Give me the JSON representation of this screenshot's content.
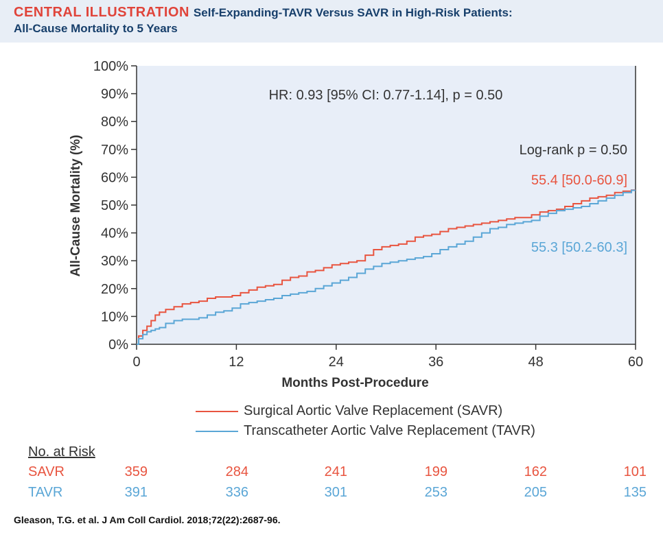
{
  "header": {
    "label": "CENTRAL ILLUSTRATION",
    "title_line1": "Self-Expanding-TAVR Versus SAVR in High-Risk Patients:",
    "title_line2": "All-Cause Mortality to 5 Years"
  },
  "colors": {
    "savr": "#e8543f",
    "tavr": "#5aa6d6",
    "plot_bg": "#e8eef8",
    "header_bg": "#e8eef6",
    "title": "#173f6b"
  },
  "chart_data": {
    "type": "line",
    "xlabel": "Months Post-Procedure",
    "ylabel": "All-Cause Mortality (%)",
    "xlim": [
      0,
      60
    ],
    "ylim": [
      0,
      100
    ],
    "x_ticks": [
      0,
      12,
      24,
      36,
      48,
      60
    ],
    "y_ticks": [
      "0%",
      "10%",
      "20%",
      "30%",
      "40%",
      "50%",
      "60%",
      "70%",
      "80%",
      "90%",
      "100%"
    ],
    "annotations": {
      "hr": "HR: 0.93 [95% CI: 0.77-1.14], p = 0.50",
      "logrank": "Log-rank p = 0.50",
      "savr_value": "55.4 [50.0-60.9]",
      "tavr_value": "55.3 [50.2-60.3]"
    },
    "series": [
      {
        "name": "Surgical Aortic Valve Replacement (SAVR)",
        "x": [
          0,
          0.5,
          1,
          1.5,
          2,
          2.5,
          3,
          4,
          5,
          6,
          7,
          8,
          9,
          10,
          11,
          12,
          13,
          14,
          15,
          16,
          17,
          18,
          19,
          20,
          21,
          22,
          23,
          24,
          25,
          26,
          27,
          28,
          29,
          30,
          31,
          32,
          33,
          34,
          35,
          36,
          37,
          38,
          39,
          40,
          41,
          42,
          43,
          44,
          45,
          46,
          47,
          48,
          49,
          50,
          51,
          52,
          53,
          54,
          55,
          56,
          57,
          58,
          59,
          60
        ],
        "values": [
          0,
          3,
          5,
          6.5,
          8.5,
          10.5,
          11.5,
          12.5,
          13.5,
          14.5,
          15,
          15.5,
          16.5,
          17,
          17,
          17.5,
          18.5,
          19.5,
          20.5,
          21,
          21.5,
          23,
          24,
          24.5,
          26,
          26.5,
          27.5,
          28.5,
          29,
          29.5,
          30,
          32,
          34,
          35,
          35.5,
          36,
          37,
          38.5,
          39,
          39.5,
          40.5,
          41.5,
          42,
          42.5,
          43,
          43.5,
          44,
          44.5,
          45,
          45.5,
          45.5,
          46.5,
          47.5,
          48,
          48.5,
          49.5,
          50.5,
          51.5,
          52.5,
          53,
          53.5,
          54.5,
          55,
          55.4
        ]
      },
      {
        "name": "Transcatheter Aortic Valve Replacement (TAVR)",
        "x": [
          0,
          0.5,
          1,
          1.5,
          2,
          2.5,
          3,
          4,
          5,
          6,
          7,
          8,
          9,
          10,
          11,
          12,
          13,
          14,
          15,
          16,
          17,
          18,
          19,
          20,
          21,
          22,
          23,
          24,
          25,
          26,
          27,
          28,
          29,
          30,
          31,
          32,
          33,
          34,
          35,
          36,
          37,
          38,
          39,
          40,
          41,
          42,
          43,
          44,
          45,
          46,
          47,
          48,
          49,
          50,
          51,
          52,
          53,
          54,
          55,
          56,
          57,
          58,
          59,
          60
        ],
        "values": [
          0,
          2,
          3.5,
          4.5,
          5,
          5.5,
          6,
          7.5,
          8.5,
          9,
          9,
          9.5,
          10.5,
          11.5,
          12,
          13,
          14.5,
          15,
          15.5,
          16,
          16.5,
          17.5,
          18,
          18.5,
          19,
          20,
          21,
          22,
          23,
          24,
          25.5,
          27,
          28,
          29,
          29.5,
          30,
          30.5,
          31,
          31.5,
          32.5,
          34,
          35,
          36,
          37,
          38.5,
          40,
          41.5,
          42,
          43,
          43.5,
          44,
          44.5,
          46,
          47,
          48,
          48.5,
          49,
          49.5,
          50.5,
          51.5,
          52.5,
          53.5,
          54.5,
          55.3
        ]
      }
    ]
  },
  "legend": [
    {
      "label": "Surgical Aortic Valve Replacement (SAVR)"
    },
    {
      "label": "Transcatheter Aortic Valve Replacement (TAVR)"
    }
  ],
  "risk_table": {
    "title": "No. at Risk",
    "rows": [
      {
        "name": "SAVR",
        "values": [
          "359",
          "284",
          "241",
          "199",
          "162",
          "101"
        ]
      },
      {
        "name": "TAVR",
        "values": [
          "391",
          "336",
          "301",
          "253",
          "205",
          "135"
        ]
      }
    ]
  },
  "citation": "Gleason, T.G. et al. J Am Coll Cardiol. 2018;72(22):2687-96."
}
